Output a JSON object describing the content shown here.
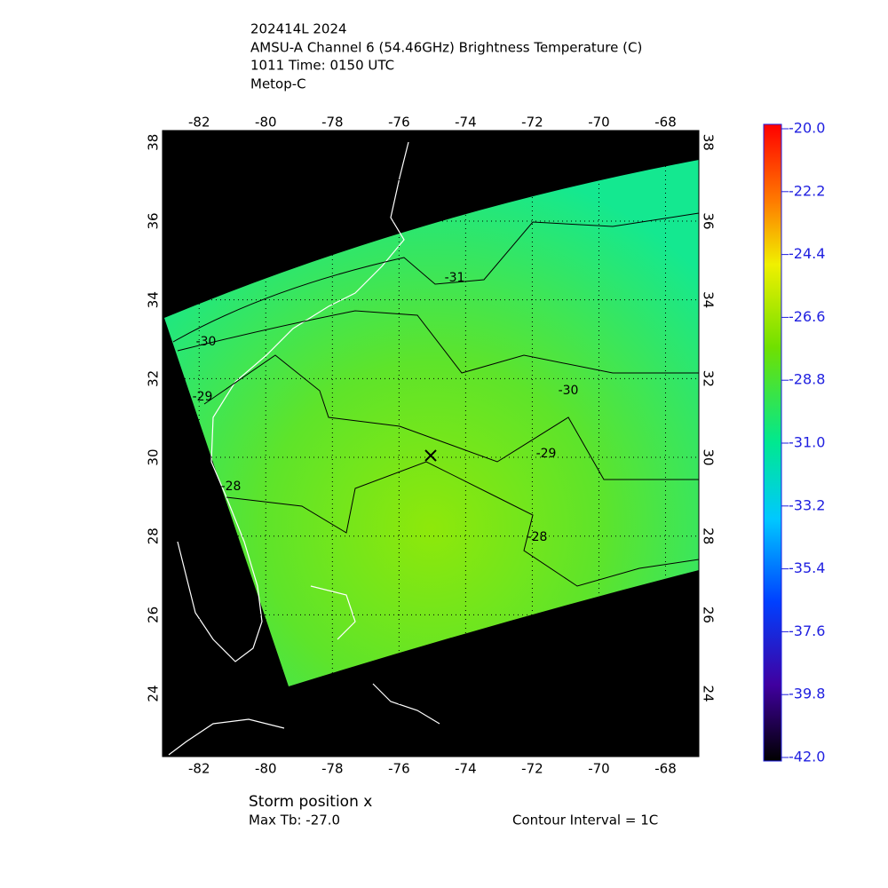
{
  "header": {
    "lines": [
      "202414L 2024",
      "AMSU-A Channel 6 (54.46GHz) Brightness Temperature (C)",
      "1011 Time: 0150 UTC",
      "Metop-C"
    ]
  },
  "map": {
    "xlim": [
      -83.1,
      -67.0
    ],
    "ylim": [
      22.4,
      38.3
    ],
    "xticks": [
      -82,
      -80,
      -78,
      -76,
      -74,
      -72,
      -70,
      -68
    ],
    "yticks": [
      24,
      26,
      28,
      30,
      32,
      34,
      36,
      38
    ],
    "contour_labels": [
      -31,
      -30,
      -30,
      -29,
      -29,
      -28,
      -28
    ]
  },
  "colorbar": {
    "ylim": [
      -42,
      -20
    ],
    "yticks": [
      {
        "value": -20,
        "label": "-20.0"
      },
      {
        "value": -22.2,
        "label": "-22.2"
      },
      {
        "value": -24.4,
        "label": "-24.4"
      },
      {
        "value": -26.6,
        "label": "-26.6"
      },
      {
        "value": -28.8,
        "label": "-28.8"
      },
      {
        "value": -31,
        "label": "-31.0"
      },
      {
        "value": -33.2,
        "label": "-33.2"
      },
      {
        "value": -35.4,
        "label": "-35.4"
      },
      {
        "value": -37.6,
        "label": "-37.6"
      },
      {
        "value": -39.8,
        "label": "-39.8"
      },
      {
        "value": -42,
        "label": "-42.0"
      }
    ]
  },
  "footer": {
    "storm": "Storm position x",
    "max_tb": "Max Tb: -27.0",
    "interval": "Contour Interval = 1C"
  }
}
